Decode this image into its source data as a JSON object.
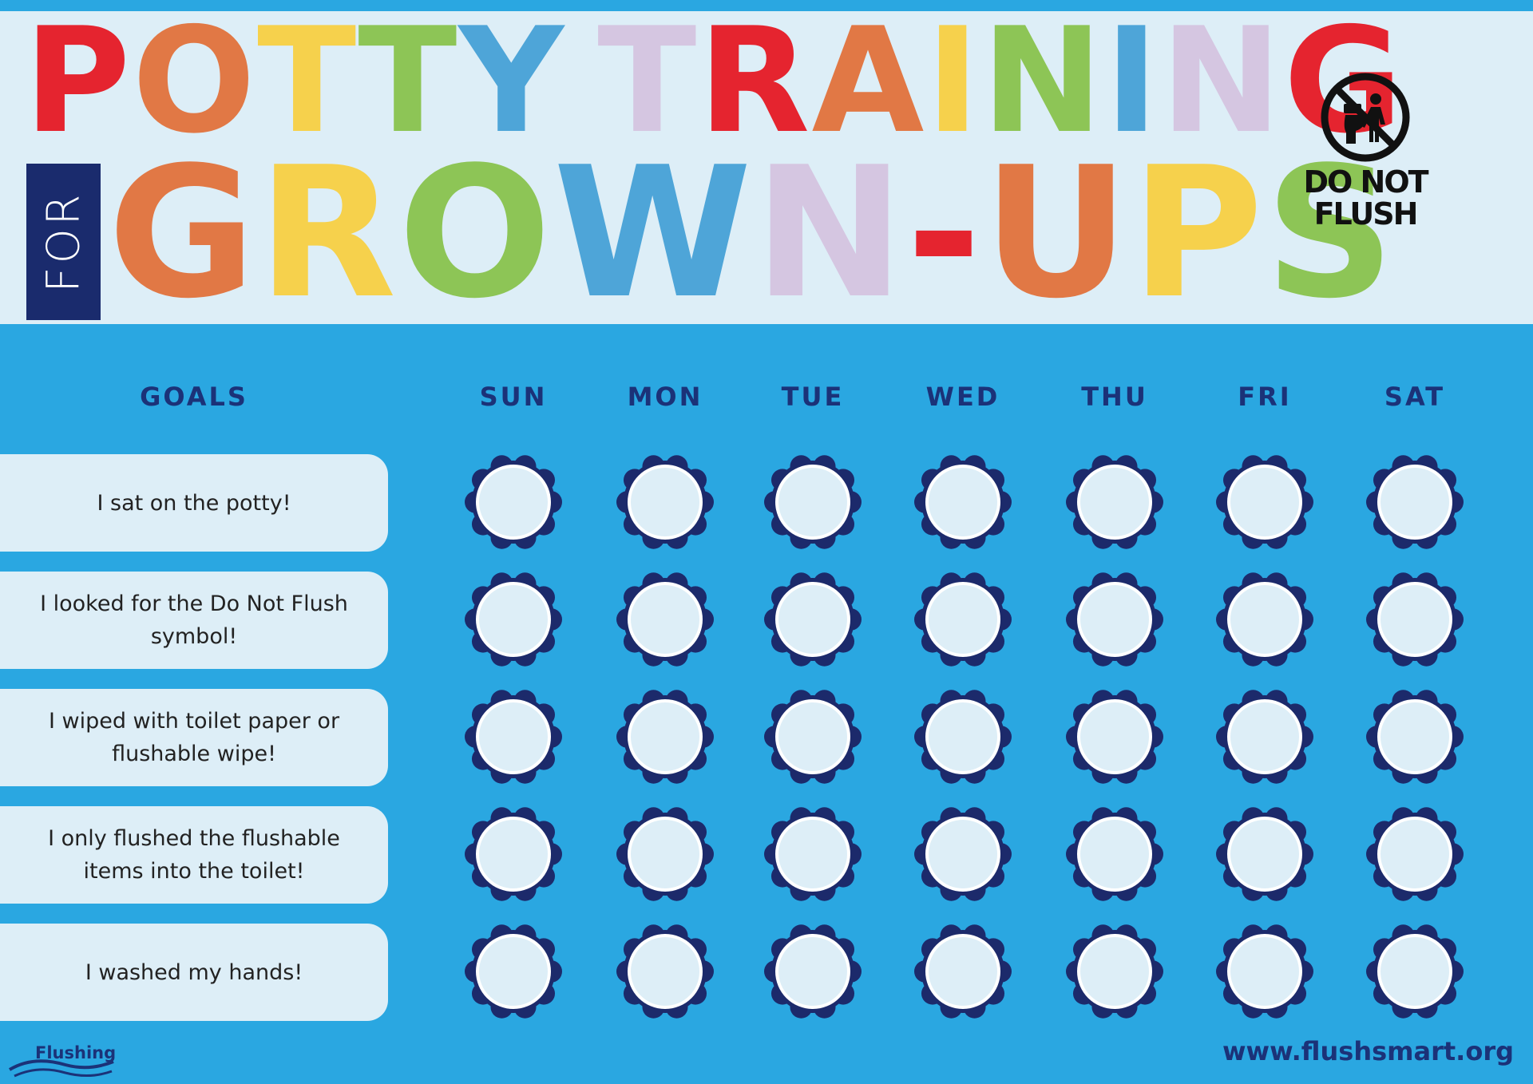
{
  "title": {
    "line1": [
      "P",
      "O",
      "T",
      "T",
      "Y",
      " ",
      "T",
      "R",
      "A",
      "I",
      "N",
      "I",
      "N",
      "G"
    ],
    "line1_colors": [
      "#e5242f",
      "#e17845",
      "#f6d14c",
      "#8dc556",
      "#4ea5d8",
      "#ddeef7",
      "#d5c6e1",
      "#e5242f",
      "#e17845",
      "#f6d14c",
      "#8dc556",
      "#4ea5d8",
      "#d5c6e1",
      "#e5242f"
    ],
    "for": "FOR",
    "line2": [
      "G",
      "R",
      "O",
      "W",
      "N",
      "-",
      "U",
      "P",
      "S"
    ],
    "line2_colors": [
      "#e17845",
      "#f6d14c",
      "#8dc556",
      "#4ea5d8",
      "#d5c6e1",
      "#e5242f",
      "#e17845",
      "#f6d14c",
      "#8dc556"
    ]
  },
  "do_not_flush": {
    "icon": "no-flush-icon",
    "line1": "DO NOT",
    "line2": "FLUSH"
  },
  "columns": {
    "goals": "GOALS",
    "days": [
      "SUN",
      "MON",
      "TUE",
      "WED",
      "THU",
      "FRI",
      "SAT"
    ]
  },
  "goals": [
    "I sat on the potty!",
    "I looked for the Do Not Flush symbol!",
    "I wiped with toilet paper or flushable wipe!",
    "I only flushed the flushable items into the toilet!",
    "I washed my hands!"
  ],
  "footer": {
    "logo_text": "Flushing",
    "url": "www.flushsmart.org"
  },
  "colors": {
    "background": "#2aa7e1",
    "panel": "#ddeef7",
    "navy": "#1b3278",
    "flower": "#1c2a6b"
  }
}
